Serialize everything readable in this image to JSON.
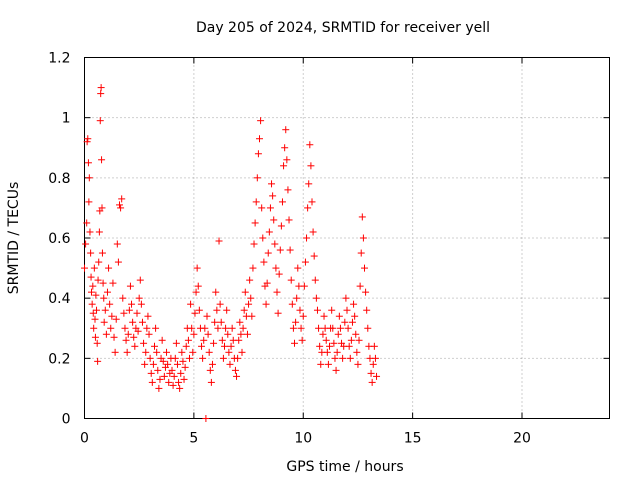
{
  "chart_data": {
    "type": "scatter",
    "title": "Day 205 of 2024, SRMTID for receiver yell",
    "xlabel": "GPS time / hours",
    "ylabel": "SRMTID / TECUs",
    "xlim": [
      0,
      24
    ],
    "ylim": [
      0,
      1.2
    ],
    "x_ticks": [
      0,
      5,
      10,
      15,
      20
    ],
    "x_tick_labels": [
      "0",
      "5",
      "10",
      "15",
      "20"
    ],
    "y_ticks": [
      0,
      0.2,
      0.4,
      0.6,
      0.8,
      1,
      1.2
    ],
    "y_tick_labels": [
      "0",
      "0.2",
      "0.4",
      "0.6",
      "0.8",
      "1",
      "1.2"
    ],
    "grid": true,
    "marker": "plus",
    "color": "#ff0000",
    "series": [
      {
        "name": "SRMTID",
        "points": [
          [
            0.0,
            0.5
          ],
          [
            0.05,
            0.58
          ],
          [
            0.1,
            0.65
          ],
          [
            0.12,
            0.92
          ],
          [
            0.15,
            0.93
          ],
          [
            0.18,
            0.85
          ],
          [
            0.2,
            0.72
          ],
          [
            0.22,
            0.8
          ],
          [
            0.25,
            0.62
          ],
          [
            0.28,
            0.55
          ],
          [
            0.3,
            0.47
          ],
          [
            0.32,
            0.42
          ],
          [
            0.35,
            0.38
          ],
          [
            0.38,
            0.44
          ],
          [
            0.4,
            0.35
          ],
          [
            0.42,
            0.3
          ],
          [
            0.45,
            0.5
          ],
          [
            0.48,
            0.33
          ],
          [
            0.5,
            0.27
          ],
          [
            0.52,
            0.41
          ],
          [
            0.55,
            0.36
          ],
          [
            0.58,
            0.25
          ],
          [
            0.6,
            0.19
          ],
          [
            0.62,
            0.46
          ],
          [
            0.65,
            0.52
          ],
          [
            0.68,
            0.62
          ],
          [
            0.7,
            0.69
          ],
          [
            0.72,
            0.99
          ],
          [
            0.74,
            1.08
          ],
          [
            0.76,
            1.1
          ],
          [
            0.78,
            0.86
          ],
          [
            0.8,
            0.7
          ],
          [
            0.82,
            0.55
          ],
          [
            0.85,
            0.45
          ],
          [
            0.88,
            0.4
          ],
          [
            0.9,
            0.32
          ],
          [
            0.95,
            0.36
          ],
          [
            1.0,
            0.28
          ],
          [
            1.05,
            0.42
          ],
          [
            1.1,
            0.5
          ],
          [
            1.15,
            0.38
          ],
          [
            1.2,
            0.3
          ],
          [
            1.25,
            0.34
          ],
          [
            1.3,
            0.45
          ],
          [
            1.35,
            0.27
          ],
          [
            1.4,
            0.22
          ],
          [
            1.45,
            0.33
          ],
          [
            1.5,
            0.58
          ],
          [
            1.55,
            0.52
          ],
          [
            1.6,
            0.71
          ],
          [
            1.65,
            0.7
          ],
          [
            1.7,
            0.73
          ],
          [
            1.75,
            0.4
          ],
          [
            1.8,
            0.35
          ],
          [
            1.85,
            0.3
          ],
          [
            1.9,
            0.26
          ],
          [
            1.95,
            0.22
          ],
          [
            2.0,
            0.28
          ],
          [
            2.05,
            0.36
          ],
          [
            2.1,
            0.44
          ],
          [
            2.15,
            0.38
          ],
          [
            2.2,
            0.32
          ],
          [
            2.25,
            0.27
          ],
          [
            2.3,
            0.24
          ],
          [
            2.35,
            0.3
          ],
          [
            2.4,
            0.35
          ],
          [
            2.45,
            0.29
          ],
          [
            2.5,
            0.4
          ],
          [
            2.55,
            0.46
          ],
          [
            2.6,
            0.38
          ],
          [
            2.65,
            0.32
          ],
          [
            2.7,
            0.25
          ],
          [
            2.75,
            0.18
          ],
          [
            2.8,
            0.22
          ],
          [
            2.85,
            0.3
          ],
          [
            2.9,
            0.34
          ],
          [
            2.95,
            0.28
          ],
          [
            3.0,
            0.2
          ],
          [
            3.05,
            0.15
          ],
          [
            3.1,
            0.12
          ],
          [
            3.15,
            0.18
          ],
          [
            3.2,
            0.24
          ],
          [
            3.25,
            0.3
          ],
          [
            3.3,
            0.22
          ],
          [
            3.35,
            0.16
          ],
          [
            3.4,
            0.1
          ],
          [
            3.45,
            0.13
          ],
          [
            3.5,
            0.2
          ],
          [
            3.55,
            0.26
          ],
          [
            3.6,
            0.19
          ],
          [
            3.65,
            0.14
          ],
          [
            3.7,
            0.17
          ],
          [
            3.75,
            0.22
          ],
          [
            3.8,
            0.18
          ],
          [
            3.85,
            0.12
          ],
          [
            3.9,
            0.15
          ],
          [
            3.95,
            0.2
          ],
          [
            4.0,
            0.16
          ],
          [
            4.05,
            0.11
          ],
          [
            4.1,
            0.14
          ],
          [
            4.15,
            0.2
          ],
          [
            4.2,
            0.25
          ],
          [
            4.25,
            0.18
          ],
          [
            4.3,
            0.12
          ],
          [
            4.35,
            0.1
          ],
          [
            4.4,
            0.15
          ],
          [
            4.45,
            0.22
          ],
          [
            4.5,
            0.19
          ],
          [
            4.55,
            0.13
          ],
          [
            4.6,
            0.17
          ],
          [
            4.65,
            0.24
          ],
          [
            4.7,
            0.3
          ],
          [
            4.75,
            0.26
          ],
          [
            4.8,
            0.2
          ],
          [
            4.85,
            0.38
          ],
          [
            4.9,
            0.3
          ],
          [
            4.95,
            0.22
          ],
          [
            5.0,
            0.28
          ],
          [
            5.05,
            0.35
          ],
          [
            5.1,
            0.42
          ],
          [
            5.15,
            0.5
          ],
          [
            5.2,
            0.44
          ],
          [
            5.25,
            0.36
          ],
          [
            5.3,
            0.3
          ],
          [
            5.35,
            0.24
          ],
          [
            5.4,
            0.2
          ],
          [
            5.45,
            0.26
          ],
          [
            5.5,
            0.3
          ],
          [
            5.55,
            0.0
          ],
          [
            5.6,
            0.34
          ],
          [
            5.65,
            0.28
          ],
          [
            5.7,
            0.22
          ],
          [
            5.75,
            0.16
          ],
          [
            5.8,
            0.12
          ],
          [
            5.85,
            0.18
          ],
          [
            5.9,
            0.25
          ],
          [
            5.95,
            0.32
          ],
          [
            6.0,
            0.42
          ],
          [
            6.05,
            0.36
          ],
          [
            6.1,
            0.3
          ],
          [
            6.15,
            0.59
          ],
          [
            6.2,
            0.38
          ],
          [
            6.25,
            0.32
          ],
          [
            6.3,
            0.26
          ],
          [
            6.35,
            0.2
          ],
          [
            6.4,
            0.24
          ],
          [
            6.45,
            0.3
          ],
          [
            6.5,
            0.36
          ],
          [
            6.55,
            0.28
          ],
          [
            6.6,
            0.22
          ],
          [
            6.65,
            0.18
          ],
          [
            6.7,
            0.24
          ],
          [
            6.75,
            0.3
          ],
          [
            6.8,
            0.26
          ],
          [
            6.85,
            0.2
          ],
          [
            6.9,
            0.16
          ],
          [
            6.95,
            0.14
          ],
          [
            7.0,
            0.2
          ],
          [
            7.05,
            0.26
          ],
          [
            7.1,
            0.32
          ],
          [
            7.15,
            0.28
          ],
          [
            7.2,
            0.22
          ],
          [
            7.25,
            0.3
          ],
          [
            7.3,
            0.36
          ],
          [
            7.35,
            0.42
          ],
          [
            7.4,
            0.34
          ],
          [
            7.45,
            0.28
          ],
          [
            7.5,
            0.38
          ],
          [
            7.55,
            0.46
          ],
          [
            7.6,
            0.4
          ],
          [
            7.65,
            0.34
          ],
          [
            7.7,
            0.5
          ],
          [
            7.75,
            0.58
          ],
          [
            7.8,
            0.65
          ],
          [
            7.85,
            0.72
          ],
          [
            7.9,
            0.8
          ],
          [
            7.95,
            0.88
          ],
          [
            8.0,
            0.93
          ],
          [
            8.05,
            0.99
          ],
          [
            8.1,
            0.7
          ],
          [
            8.15,
            0.6
          ],
          [
            8.2,
            0.52
          ],
          [
            8.25,
            0.44
          ],
          [
            8.3,
            0.38
          ],
          [
            8.35,
            0.45
          ],
          [
            8.4,
            0.55
          ],
          [
            8.45,
            0.62
          ],
          [
            8.5,
            0.7
          ],
          [
            8.55,
            0.78
          ],
          [
            8.6,
            0.74
          ],
          [
            8.65,
            0.66
          ],
          [
            8.7,
            0.58
          ],
          [
            8.75,
            0.5
          ],
          [
            8.8,
            0.42
          ],
          [
            8.85,
            0.35
          ],
          [
            8.9,
            0.48
          ],
          [
            8.95,
            0.56
          ],
          [
            9.0,
            0.64
          ],
          [
            9.05,
            0.72
          ],
          [
            9.1,
            0.84
          ],
          [
            9.15,
            0.9
          ],
          [
            9.2,
            0.96
          ],
          [
            9.25,
            0.86
          ],
          [
            9.3,
            0.76
          ],
          [
            9.35,
            0.66
          ],
          [
            9.4,
            0.56
          ],
          [
            9.45,
            0.46
          ],
          [
            9.5,
            0.38
          ],
          [
            9.55,
            0.3
          ],
          [
            9.6,
            0.25
          ],
          [
            9.65,
            0.32
          ],
          [
            9.7,
            0.4
          ],
          [
            9.75,
            0.5
          ],
          [
            9.8,
            0.44
          ],
          [
            9.85,
            0.36
          ],
          [
            9.9,
            0.3
          ],
          [
            9.95,
            0.26
          ],
          [
            10.0,
            0.34
          ],
          [
            10.05,
            0.44
          ],
          [
            10.1,
            0.52
          ],
          [
            10.15,
            0.6
          ],
          [
            10.2,
            0.7
          ],
          [
            10.25,
            0.78
          ],
          [
            10.3,
            0.91
          ],
          [
            10.35,
            0.84
          ],
          [
            10.4,
            0.72
          ],
          [
            10.45,
            0.62
          ],
          [
            10.5,
            0.54
          ],
          [
            10.55,
            0.46
          ],
          [
            10.6,
            0.4
          ],
          [
            10.65,
            0.36
          ],
          [
            10.7,
            0.3
          ],
          [
            10.75,
            0.24
          ],
          [
            10.8,
            0.18
          ],
          [
            10.85,
            0.22
          ],
          [
            10.9,
            0.28
          ],
          [
            10.95,
            0.34
          ],
          [
            11.0,
            0.3
          ],
          [
            11.05,
            0.26
          ],
          [
            11.1,
            0.22
          ],
          [
            11.15,
            0.18
          ],
          [
            11.2,
            0.24
          ],
          [
            11.25,
            0.3
          ],
          [
            11.3,
            0.36
          ],
          [
            11.35,
            0.3
          ],
          [
            11.4,
            0.25
          ],
          [
            11.45,
            0.2
          ],
          [
            11.5,
            0.16
          ],
          [
            11.55,
            0.22
          ],
          [
            11.6,
            0.28
          ],
          [
            11.65,
            0.34
          ],
          [
            11.7,
            0.3
          ],
          [
            11.75,
            0.25
          ],
          [
            11.8,
            0.2
          ],
          [
            11.85,
            0.24
          ],
          [
            11.9,
            0.32
          ],
          [
            11.95,
            0.4
          ],
          [
            12.0,
            0.36
          ],
          [
            12.05,
            0.3
          ],
          [
            12.1,
            0.24
          ],
          [
            12.15,
            0.2
          ],
          [
            12.2,
            0.26
          ],
          [
            12.25,
            0.32
          ],
          [
            12.3,
            0.38
          ],
          [
            12.35,
            0.34
          ],
          [
            12.4,
            0.28
          ],
          [
            12.45,
            0.22
          ],
          [
            12.5,
            0.18
          ],
          [
            12.55,
            0.26
          ],
          [
            12.6,
            0.44
          ],
          [
            12.65,
            0.55
          ],
          [
            12.7,
            0.67
          ],
          [
            12.75,
            0.6
          ],
          [
            12.8,
            0.5
          ],
          [
            12.85,
            0.42
          ],
          [
            12.9,
            0.36
          ],
          [
            12.95,
            0.3
          ],
          [
            13.0,
            0.24
          ],
          [
            13.05,
            0.2
          ],
          [
            13.1,
            0.15
          ],
          [
            13.15,
            0.12
          ],
          [
            13.2,
            0.18
          ],
          [
            13.25,
            0.24
          ],
          [
            13.3,
            0.2
          ],
          [
            13.35,
            0.14
          ]
        ]
      }
    ]
  }
}
